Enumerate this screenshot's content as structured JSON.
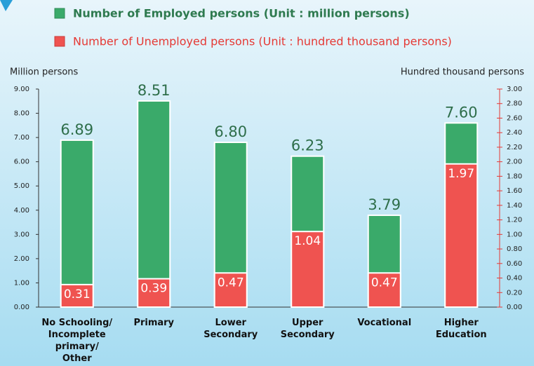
{
  "chart_data": {
    "type": "bar",
    "y_label": "Million persons",
    "y2_label": "Hundred thousand persons",
    "categories": [
      "No Schooling/\nIncomplete\nprimary/\nOther",
      "Primary",
      "Lower\nSecondary",
      "Upper\nSecondary",
      "Vocational",
      "Higher\nEducation"
    ],
    "series": [
      {
        "name": "Number of Employed persons (Unit : million persons)",
        "color": "#3aaa6a",
        "values": [
          6.89,
          8.51,
          6.8,
          6.23,
          3.79,
          7.6
        ],
        "value_labels": [
          "6.89",
          "8.51",
          "6.80",
          "6.23",
          "3.79",
          "7.60"
        ]
      },
      {
        "name": "Number of Unemployed persons (Unit : hundred thousand persons)",
        "color": "#ef5350",
        "axis": "y2",
        "values": [
          0.31,
          0.39,
          0.47,
          1.04,
          0.47,
          1.97
        ]
      }
    ],
    "ylim": [
      0,
      9
    ],
    "yticks": [
      {
        "value": 0,
        "label": "0.00"
      },
      {
        "value": 1,
        "label": "1.00"
      },
      {
        "value": 2,
        "label": "2.00"
      },
      {
        "value": 3,
        "label": "3.00"
      },
      {
        "value": 4,
        "label": "4.00"
      },
      {
        "value": 5,
        "label": "5.00"
      },
      {
        "value": 6,
        "label": "6.00"
      },
      {
        "value": 7,
        "label": "7.00"
      },
      {
        "value": 8,
        "label": "8.00"
      },
      {
        "value": 9,
        "label": "9.00"
      }
    ],
    "y2lim": [
      0,
      3
    ],
    "y2ticks": [
      {
        "value": 0,
        "label": "0.00"
      },
      {
        "value": 0.2,
        "label": "0.20"
      },
      {
        "value": 0.4,
        "label": "0.40"
      },
      {
        "value": 0.6,
        "label": "0.60"
      },
      {
        "value": 0.8,
        "label": "0.80"
      },
      {
        "value": 1,
        "label": "1.00"
      },
      {
        "value": 1.2,
        "label": "1.20"
      },
      {
        "value": 1.4,
        "label": "1.40"
      },
      {
        "value": 1.6,
        "label": "1.60"
      },
      {
        "value": 1.8,
        "label": "1.80"
      },
      {
        "value": 2,
        "label": "2.00"
      },
      {
        "value": 2.2,
        "label": "2.20"
      },
      {
        "value": 2.4,
        "label": "2.40"
      },
      {
        "value": 2.6,
        "label": "2.60"
      },
      {
        "value": 2.8,
        "label": "2.80"
      },
      {
        "value": 3,
        "label": "3.00"
      }
    ]
  }
}
